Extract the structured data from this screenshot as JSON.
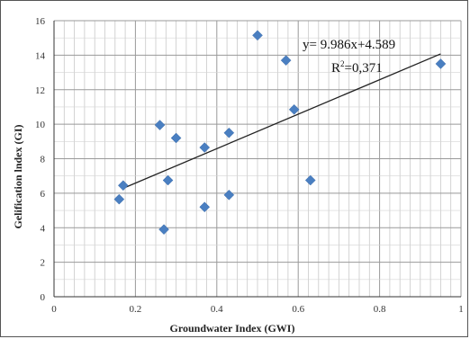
{
  "chart_data": {
    "type": "scatter",
    "title": "",
    "xlabel": "Groundwater Index (GWI)",
    "ylabel": "Gelification lndex (GI)",
    "xlim": [
      0,
      1
    ],
    "ylim": [
      0,
      16
    ],
    "x_ticks": [
      "0",
      "0.2",
      "0.4",
      "0.6",
      "0.8",
      "1"
    ],
    "y_ticks": [
      "0",
      "2",
      "4",
      "6",
      "8",
      "10",
      "12",
      "14",
      "16"
    ],
    "grid": true,
    "marker_color": "#4a7fc1",
    "trendline_color": "#222222",
    "points": [
      {
        "x": 0.16,
        "y": 5.65
      },
      {
        "x": 0.17,
        "y": 6.45
      },
      {
        "x": 0.26,
        "y": 9.95
      },
      {
        "x": 0.27,
        "y": 3.9
      },
      {
        "x": 0.28,
        "y": 6.75
      },
      {
        "x": 0.3,
        "y": 9.2
      },
      {
        "x": 0.37,
        "y": 8.65
      },
      {
        "x": 0.37,
        "y": 5.2
      },
      {
        "x": 0.43,
        "y": 9.5
      },
      {
        "x": 0.43,
        "y": 5.9
      },
      {
        "x": 0.5,
        "y": 15.15
      },
      {
        "x": 0.57,
        "y": 13.7
      },
      {
        "x": 0.59,
        "y": 10.85
      },
      {
        "x": 0.63,
        "y": 6.75
      },
      {
        "x": 0.95,
        "y": 13.5
      }
    ],
    "trendline": {
      "slope": 9.986,
      "intercept": 4.589,
      "x_range": [
        0.17,
        0.95
      ],
      "equation": "y= 9.986x+4.589",
      "r2_prefix": "R",
      "r2_sup": "2",
      "r2_value": "=0,371"
    }
  }
}
